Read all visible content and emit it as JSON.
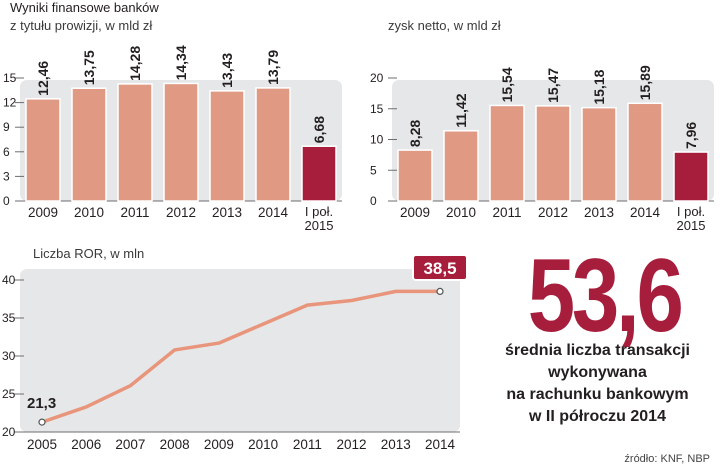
{
  "header": {
    "title": "Wyniki finansowe banków",
    "chart1_subtitle": "z tytułu prowizji, w mld zł",
    "chart2_subtitle": "zysk netto, w mld zł",
    "chart3_subtitle": "Liczba ROR, w mln"
  },
  "chart_data": [
    {
      "type": "bar",
      "title": "Wyniki finansowe banków",
      "subtitle": "z tytułu prowizji, w mld zł",
      "categories": [
        "2009",
        "2010",
        "2011",
        "2012",
        "2013",
        "2014",
        "I poł. 2015"
      ],
      "values": [
        12.46,
        13.75,
        14.28,
        14.34,
        13.43,
        13.79,
        6.68
      ],
      "value_labels": [
        "12,46",
        "13,75",
        "14,28",
        "14,34",
        "13,43",
        "13,79",
        "6,68"
      ],
      "highlight_index": 6,
      "yticks": [
        0,
        3,
        6,
        9,
        12,
        15
      ],
      "ylim": [
        0,
        15
      ]
    },
    {
      "type": "bar",
      "title": "zysk netto, w mld zł",
      "categories": [
        "2009",
        "2010",
        "2011",
        "2012",
        "2013",
        "2014",
        "I poł. 2015"
      ],
      "values": [
        8.28,
        11.42,
        15.54,
        15.47,
        15.18,
        15.89,
        7.96
      ],
      "value_labels": [
        "8,28",
        "11,42",
        "15,54",
        "15,47",
        "15,18",
        "15,89",
        "7,96"
      ],
      "highlight_index": 6,
      "yticks": [
        0,
        5,
        10,
        15,
        20
      ],
      "ylim": [
        0,
        20
      ]
    },
    {
      "type": "line",
      "title": "Liczba ROR, w mln",
      "x": [
        "2005",
        "2006",
        "2007",
        "2008",
        "2009",
        "2010",
        "2011",
        "2012",
        "2013",
        "2014"
      ],
      "values": [
        21.3,
        23.3,
        26.1,
        30.8,
        31.7,
        34.2,
        36.7,
        37.3,
        38.5,
        38.5
      ],
      "start_label": "21,3",
      "end_label": "38,5",
      "yticks": [
        20,
        25,
        30,
        35,
        40
      ],
      "ylim": [
        20,
        40
      ]
    }
  ],
  "stat": {
    "value": "53,6",
    "description_lines": [
      "średnia liczba transakcji",
      "wykonywana",
      "na rachunku bankowym",
      "w II półroczu 2014"
    ]
  },
  "source": "źródło: KNF, NBP",
  "colors": {
    "bar": "#e09a84",
    "bar_highlight": "#a71d3c",
    "panel": "#e6e7e8",
    "line": "#e8957c",
    "accent": "#a71d3c"
  }
}
